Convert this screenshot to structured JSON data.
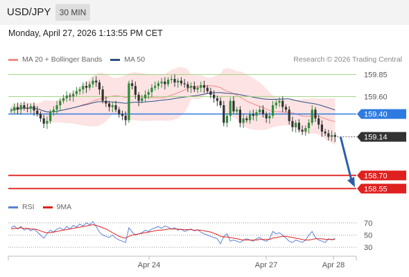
{
  "header": {
    "symbol": "USD/JPY",
    "timeframe": "30 MIN",
    "datetime": "Monday, April 27, 2026 1:13:55 PM CET"
  },
  "legend": {
    "ma20": {
      "label": "MA 20 + Bollinger Bands",
      "color": "#f08a8a"
    },
    "ma50": {
      "label": "MA 50",
      "color": "#2b4f86"
    },
    "credit": "Research © 2026 Trading Central"
  },
  "rsi_legend": {
    "rsi": {
      "label": "RSI",
      "color": "#5b7fd6"
    },
    "ma9": {
      "label": "9MA",
      "color": "#e0201e"
    }
  },
  "colors": {
    "resistance": "#9fd37e",
    "resistance_text": "#4a9a2a",
    "pivot": "#2d7be0",
    "support": "#e0201e",
    "last_price": "#333333",
    "candle_up": "#2e8b3a",
    "candle_down": "#333333",
    "bb_fill": "#fde3e3"
  },
  "chart_data": {
    "type": "candlestick",
    "price_axis_range": [
      158.45,
      159.95
    ],
    "x_tick_labels": [
      "Apr 24",
      "Apr 27",
      "Apr 28"
    ],
    "last_price": 159.14,
    "levels": {
      "resistance": [
        159.85,
        159.6
      ],
      "pivot": 159.4,
      "support": [
        158.7,
        158.55
      ]
    },
    "forecast": {
      "from": 159.14,
      "to": 158.55,
      "direction": "down"
    },
    "close": [
      159.44,
      159.48,
      159.45,
      159.5,
      159.47,
      159.46,
      159.49,
      159.44,
      159.4,
      159.35,
      159.29,
      159.32,
      159.42,
      159.45,
      159.5,
      159.55,
      159.58,
      159.61,
      159.6,
      159.63,
      159.66,
      159.68,
      159.72,
      159.7,
      159.74,
      159.78,
      159.76,
      159.68,
      159.55,
      159.52,
      159.48,
      159.5,
      159.45,
      159.4,
      159.38,
      159.33,
      159.75,
      159.72,
      159.62,
      159.55,
      159.58,
      159.62,
      159.65,
      159.7,
      159.72,
      159.75,
      159.77,
      159.74,
      159.79,
      159.8,
      159.76,
      159.78,
      159.75,
      159.74,
      159.7,
      159.72,
      159.68,
      159.7,
      159.73,
      159.7,
      159.66,
      159.62,
      159.58,
      159.55,
      159.5,
      159.3,
      159.38,
      159.55,
      159.43,
      159.45,
      159.3,
      159.35,
      159.33,
      159.4,
      159.38,
      159.42,
      159.45,
      159.4,
      159.35,
      159.38,
      159.5,
      159.53,
      159.55,
      159.48,
      159.45,
      159.32,
      159.25,
      159.3,
      159.22,
      159.2,
      159.24,
      159.3,
      159.45,
      159.35,
      159.28,
      159.2,
      159.18,
      159.14,
      159.16,
      159.14
    ],
    "rsi": {
      "levels": [
        70,
        50,
        30
      ],
      "rsi": [
        62,
        65,
        60,
        64,
        58,
        61,
        57,
        60,
        55,
        50,
        45,
        52,
        58,
        55,
        60,
        62,
        58,
        64,
        60,
        66,
        63,
        68,
        65,
        70,
        67,
        72,
        64,
        55,
        50,
        48,
        46,
        50,
        45,
        42,
        40,
        38,
        62,
        55,
        50,
        52,
        54,
        58,
        56,
        60,
        62,
        64,
        61,
        65,
        63,
        60,
        62,
        58,
        60,
        56,
        58,
        60,
        57,
        59,
        55,
        52,
        50,
        48,
        46,
        44,
        36,
        48,
        52,
        40,
        42,
        40,
        38,
        42,
        44,
        42,
        40,
        44,
        46,
        42,
        40,
        44,
        56,
        52,
        54,
        50,
        45,
        40,
        38,
        42,
        40,
        38,
        42,
        50,
        56,
        46,
        42,
        40,
        38,
        44,
        42,
        45
      ],
      "ma9": [
        60,
        61,
        61,
        62,
        61,
        61,
        60,
        60,
        59,
        57,
        55,
        54,
        54,
        55,
        56,
        57,
        58,
        59,
        60,
        61,
        62,
        63,
        64,
        65,
        66,
        67,
        66,
        64,
        62,
        60,
        57,
        54,
        51,
        48,
        46,
        45,
        48,
        50,
        51,
        52,
        53,
        54,
        55,
        56,
        57,
        58,
        58,
        59,
        60,
        60,
        60,
        60,
        59,
        59,
        59,
        59,
        58,
        58,
        58,
        57,
        56,
        55,
        53,
        51,
        48,
        47,
        47,
        46,
        45,
        44,
        43,
        42,
        42,
        42,
        42,
        42,
        43,
        43,
        43,
        43,
        45,
        46,
        47,
        48,
        48,
        47,
        46,
        45,
        44,
        43,
        42,
        42,
        43,
        44,
        44,
        44,
        43,
        43,
        43,
        43
      ]
    }
  }
}
